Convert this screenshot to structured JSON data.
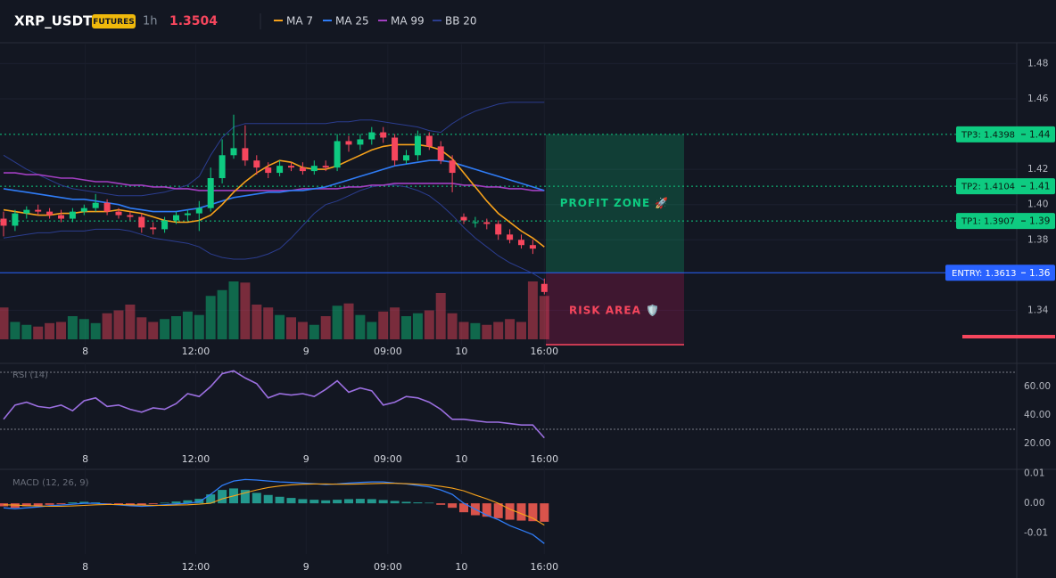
{
  "header": {
    "symbol": "XRP_USDT",
    "badge": "FUTURES",
    "interval": "1h",
    "price": 1.3504
  },
  "chart_data": [
    {
      "type": "candlestick",
      "up_color": "#0ecb81",
      "down_color": "#f6465d",
      "open": [
        1.392,
        1.388,
        1.395,
        1.397,
        1.396,
        1.394,
        1.392,
        1.396,
        1.398,
        1.401,
        1.396,
        1.394,
        1.393,
        1.387,
        1.386,
        1.391,
        1.394,
        1.395,
        1.398,
        1.415,
        1.428,
        1.432,
        1.425,
        1.421,
        1.418,
        1.422,
        1.421,
        1.419,
        1.422,
        1.421,
        1.436,
        1.434,
        1.437,
        1.441,
        1.438,
        1.425,
        1.428,
        1.439,
        1.433,
        1.425,
        1.393,
        1.39,
        1.39,
        1.389,
        1.383,
        1.38,
        1.377,
        1.355
      ],
      "high": [
        1.396,
        1.397,
        1.399,
        1.4,
        1.398,
        1.397,
        1.398,
        1.4,
        1.406,
        1.403,
        1.398,
        1.396,
        1.395,
        1.39,
        1.393,
        1.396,
        1.397,
        1.402,
        1.421,
        1.437,
        1.451,
        1.445,
        1.428,
        1.424,
        1.425,
        1.424,
        1.424,
        1.425,
        1.425,
        1.44,
        1.439,
        1.44,
        1.444,
        1.444,
        1.44,
        1.431,
        1.442,
        1.441,
        1.436,
        1.428,
        1.395,
        1.393,
        1.392,
        1.391,
        1.386,
        1.383,
        1.38,
        1.358
      ],
      "low": [
        1.382,
        1.385,
        1.392,
        1.394,
        1.392,
        1.39,
        1.39,
        1.394,
        1.396,
        1.394,
        1.392,
        1.391,
        1.384,
        1.383,
        1.384,
        1.389,
        1.391,
        1.385,
        1.396,
        1.412,
        1.426,
        1.422,
        1.417,
        1.415,
        1.416,
        1.419,
        1.417,
        1.417,
        1.419,
        1.419,
        1.43,
        1.431,
        1.434,
        1.435,
        1.422,
        1.423,
        1.425,
        1.431,
        1.423,
        1.407,
        1.389,
        1.387,
        1.386,
        1.38,
        1.378,
        1.375,
        1.372,
        1.349
      ],
      "close": [
        1.388,
        1.395,
        1.397,
        1.396,
        1.394,
        1.392,
        1.396,
        1.398,
        1.401,
        1.396,
        1.394,
        1.393,
        1.387,
        1.386,
        1.391,
        1.394,
        1.395,
        1.398,
        1.415,
        1.428,
        1.432,
        1.425,
        1.421,
        1.418,
        1.422,
        1.421,
        1.419,
        1.422,
        1.421,
        1.436,
        1.434,
        1.437,
        1.441,
        1.438,
        1.425,
        1.428,
        1.439,
        1.433,
        1.425,
        1.418,
        1.391,
        1.39,
        1.389,
        1.383,
        1.38,
        1.377,
        1.375,
        1.3504
      ],
      "volume": [
        55,
        30,
        25,
        22,
        28,
        30,
        40,
        35,
        28,
        45,
        50,
        60,
        38,
        30,
        35,
        40,
        48,
        42,
        75,
        85,
        100,
        98,
        60,
        55,
        42,
        38,
        30,
        25,
        40,
        58,
        62,
        42,
        30,
        48,
        55,
        40,
        45,
        50,
        80,
        45,
        30,
        28,
        25,
        30,
        35,
        30,
        100,
        75
      ],
      "series": [
        {
          "name": "MA 7",
          "color": "#f7a21b",
          "values": [
            1.397,
            1.396,
            1.395,
            1.394,
            1.394,
            1.395,
            1.395,
            1.396,
            1.396,
            1.396,
            1.397,
            1.396,
            1.395,
            1.393,
            1.391,
            1.39,
            1.39,
            1.391,
            1.394,
            1.4,
            1.407,
            1.413,
            1.418,
            1.422,
            1.425,
            1.424,
            1.421,
            1.42,
            1.42,
            1.422,
            1.425,
            1.428,
            1.431,
            1.433,
            1.434,
            1.434,
            1.434,
            1.433,
            1.431,
            1.426,
            1.418,
            1.41,
            1.402,
            1.395,
            1.39,
            1.385,
            1.381,
            1.376
          ]
        },
        {
          "name": "MA 25",
          "color": "#2f7cf6",
          "values": [
            1.409,
            1.408,
            1.407,
            1.406,
            1.405,
            1.404,
            1.403,
            1.403,
            1.402,
            1.401,
            1.4,
            1.398,
            1.397,
            1.396,
            1.396,
            1.396,
            1.397,
            1.398,
            1.4,
            1.402,
            1.404,
            1.405,
            1.406,
            1.407,
            1.407,
            1.408,
            1.408,
            1.409,
            1.41,
            1.412,
            1.414,
            1.416,
            1.418,
            1.42,
            1.422,
            1.423,
            1.424,
            1.425,
            1.425,
            1.424,
            1.422,
            1.42,
            1.418,
            1.416,
            1.414,
            1.412,
            1.41,
            1.408
          ]
        },
        {
          "name": "MA 99",
          "color": "#a23fc1",
          "values": [
            1.418,
            1.418,
            1.417,
            1.417,
            1.416,
            1.415,
            1.415,
            1.414,
            1.413,
            1.413,
            1.412,
            1.411,
            1.411,
            1.41,
            1.41,
            1.409,
            1.409,
            1.408,
            1.408,
            1.408,
            1.408,
            1.408,
            1.408,
            1.408,
            1.408,
            1.408,
            1.409,
            1.409,
            1.409,
            1.409,
            1.41,
            1.41,
            1.411,
            1.411,
            1.412,
            1.412,
            1.412,
            1.412,
            1.412,
            1.412,
            1.411,
            1.411,
            1.41,
            1.41,
            1.409,
            1.409,
            1.408,
            1.408
          ]
        },
        {
          "name": "BB 20",
          "color": "#2b3d8f",
          "upper": [
            1.428,
            1.424,
            1.42,
            1.417,
            1.414,
            1.411,
            1.409,
            1.408,
            1.407,
            1.406,
            1.405,
            1.405,
            1.405,
            1.406,
            1.407,
            1.409,
            1.411,
            1.416,
            1.428,
            1.438,
            1.444,
            1.446,
            1.446,
            1.446,
            1.446,
            1.446,
            1.446,
            1.446,
            1.446,
            1.447,
            1.447,
            1.448,
            1.448,
            1.447,
            1.446,
            1.445,
            1.444,
            1.442,
            1.441,
            1.446,
            1.45,
            1.453,
            1.455,
            1.457,
            1.458,
            1.458,
            1.458,
            1.458
          ],
          "lower": [
            1.381,
            1.382,
            1.383,
            1.384,
            1.384,
            1.385,
            1.385,
            1.385,
            1.386,
            1.386,
            1.386,
            1.385,
            1.383,
            1.381,
            1.38,
            1.379,
            1.378,
            1.376,
            1.372,
            1.37,
            1.369,
            1.369,
            1.37,
            1.372,
            1.375,
            1.381,
            1.388,
            1.395,
            1.4,
            1.402,
            1.405,
            1.408,
            1.41,
            1.411,
            1.411,
            1.41,
            1.408,
            1.405,
            1.4,
            1.394,
            1.387,
            1.381,
            1.376,
            1.371,
            1.367,
            1.364,
            1.361,
            1.357
          ]
        }
      ],
      "ylim": [
        1.32,
        1.49
      ],
      "yticks": [
        1.34,
        1.38,
        {
          "value": 1.4,
          "label": "1.40"
        },
        1.42,
        1.46,
        1.48
      ],
      "xticks": [
        {
          "value": 7.1,
          "label": "8"
        },
        {
          "value": 16.7,
          "label": "12:00"
        },
        {
          "value": 26.3,
          "label": "9"
        },
        {
          "value": 33.4,
          "label": "09:00"
        },
        {
          "value": 39.8,
          "label": "10"
        },
        {
          "value": 47,
          "label": "16:00"
        }
      ],
      "grid": true,
      "levels": [
        {
          "name": "TP3: 1.4398",
          "value": 1.4398,
          "tag": "1.44",
          "color": "#0ecb81",
          "dashed": true
        },
        {
          "name": "TP2: 1.4104",
          "value": 1.4104,
          "tag": "1.41",
          "color": "#0ecb81",
          "dashed": true
        },
        {
          "name": "TP1: 1.3907",
          "value": 1.3907,
          "tag": "1.39",
          "color": "#0ecb81",
          "dashed": true
        },
        {
          "name": "ENTRY: 1.3613",
          "value": 1.3613,
          "tag": "1.36",
          "color": "#2962ff",
          "dashed": false
        }
      ],
      "zones": {
        "profit": "PROFIT ZONE 🚀",
        "risk": "RISK AREA 🛡️"
      }
    },
    {
      "type": "line",
      "title": "RSI (14)",
      "color": "#9b6fe0",
      "values": [
        37,
        47,
        49,
        46,
        45,
        47,
        43,
        50,
        52,
        46,
        47,
        44,
        42,
        45,
        44,
        48,
        55,
        53,
        60,
        69,
        71,
        66,
        62,
        52,
        55,
        54,
        55,
        53,
        58,
        64,
        56,
        59,
        57,
        47,
        49,
        53,
        52,
        49,
        44,
        37,
        37,
        36,
        35,
        35,
        34,
        33,
        33,
        24
      ],
      "ylim": [
        12.5,
        75
      ],
      "yticks": [
        {
          "value": 60,
          "label": "60.00"
        },
        {
          "value": 40,
          "label": "40.00"
        },
        {
          "value": 20,
          "label": "20.00"
        }
      ],
      "bands": [
        30,
        70
      ]
    },
    {
      "type": "macd",
      "title": "MACD (12, 26, 9)",
      "up_color": "#26a69a",
      "down_color": "#f05a50",
      "macd_color": "#2f7cf6",
      "signal_color": "#f7a21b",
      "histogram": [
        -0.001,
        -0.0015,
        -0.001,
        -0.0008,
        -0.0005,
        -0.0003,
        0.0003,
        0.0005,
        0.0003,
        -0.0002,
        -0.0005,
        -0.0008,
        -0.0006,
        -0.0003,
        0.0002,
        0.0006,
        0.001,
        0.0015,
        0.003,
        0.0045,
        0.005,
        0.0045,
        0.0035,
        0.0028,
        0.0022,
        0.0018,
        0.0014,
        0.0012,
        0.001,
        0.0012,
        0.0014,
        0.0015,
        0.0014,
        0.0011,
        0.0008,
        0.0005,
        0.0003,
        0.0002,
        -0.0005,
        -0.0015,
        -0.003,
        -0.004,
        -0.0045,
        -0.005,
        -0.0055,
        -0.0058,
        -0.006,
        -0.0062
      ],
      "macd": [
        -0.0015,
        -0.0018,
        -0.0015,
        -0.0012,
        -0.0008,
        -0.0006,
        -0.0003,
        0.0,
        0.0,
        -0.0003,
        -0.0005,
        -0.0008,
        -0.001,
        -0.0008,
        -0.0005,
        -0.0002,
        0.0,
        0.0005,
        0.003,
        0.006,
        0.0075,
        0.008,
        0.0078,
        0.0075,
        0.0072,
        0.007,
        0.0068,
        0.0066,
        0.0063,
        0.0065,
        0.0068,
        0.007,
        0.0072,
        0.0072,
        0.0068,
        0.0065,
        0.006,
        0.0055,
        0.0045,
        0.003,
        0.0,
        -0.002,
        -0.004,
        -0.0055,
        -0.0075,
        -0.009,
        -0.0105,
        -0.0135
      ],
      "signal": [
        -0.0005,
        -0.0006,
        -0.0008,
        -0.0009,
        -0.001,
        -0.001,
        -0.0009,
        -0.0007,
        -0.0005,
        -0.0004,
        -0.0004,
        -0.0005,
        -0.0006,
        -0.0007,
        -0.0007,
        -0.0006,
        -0.0005,
        -0.0003,
        0.0,
        0.0015,
        0.0025,
        0.0035,
        0.0045,
        0.0053,
        0.0058,
        0.0062,
        0.0064,
        0.0065,
        0.0065,
        0.0064,
        0.0064,
        0.0065,
        0.0066,
        0.0067,
        0.0067,
        0.0066,
        0.0064,
        0.0061,
        0.0057,
        0.0051,
        0.0042,
        0.0028,
        0.0015,
        0.0,
        -0.002,
        -0.0035,
        -0.005,
        -0.0073
      ],
      "ylim": [
        -0.017,
        0.012
      ],
      "yticks": [
        0.01,
        {
          "value": 0,
          "label": "0.00"
        },
        -0.01
      ]
    }
  ]
}
